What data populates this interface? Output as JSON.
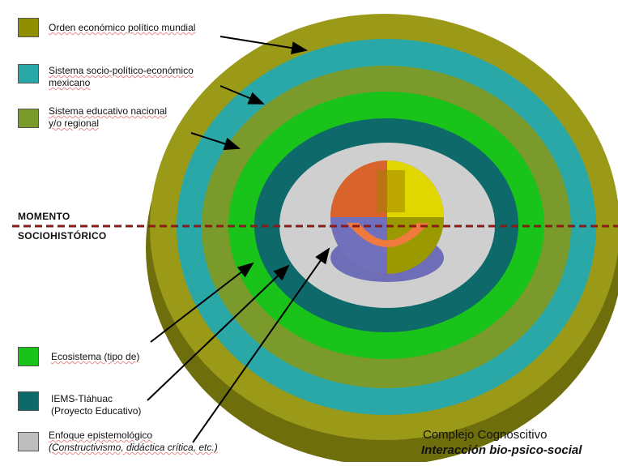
{
  "legend_top": [
    {
      "color": "#8f8f00",
      "label": "Orden económico político mundial"
    },
    {
      "color": "#2aa7a7",
      "label_lines": [
        "Sistema socio-político-económico",
        "mexicano"
      ]
    },
    {
      "color": "#7b9a2c",
      "label_lines": [
        "Sistema educativo nacional",
        "y/o regional"
      ]
    }
  ],
  "legend_bottom": [
    {
      "color": "#19c319",
      "label": "Ecosistema (tipo de)"
    },
    {
      "color": "#0e6a6a",
      "label_lines": [
        "IEMS-Tláhuac",
        "(Proyecto Educativo)"
      ]
    },
    {
      "color": "#bdbdbd",
      "label_lines": [
        "Enfoque epistemológico",
        "(Constructivismo, didáctica crítica, etc.)"
      ]
    }
  ],
  "momento": {
    "line1": "MOMENTO",
    "line2": "SOCIOHISTÓRICO",
    "line_color": "#8b1a1a"
  },
  "complejo": {
    "title": "Complejo Cognoscitivo",
    "subtitle": "Interacción bio-psico-social"
  },
  "rings": {
    "outer_olive": "#9b9a18",
    "teal": "#2aa7a7",
    "olive_green": "#7b9a2c",
    "bright_green": "#19c319",
    "dark_teal": "#0e6a6a",
    "gray": "#cfcfcf",
    "sphere_orange": "#d9632d",
    "sphere_yellow": "#e0d600",
    "sphere_purple": "#6e6eb8"
  }
}
